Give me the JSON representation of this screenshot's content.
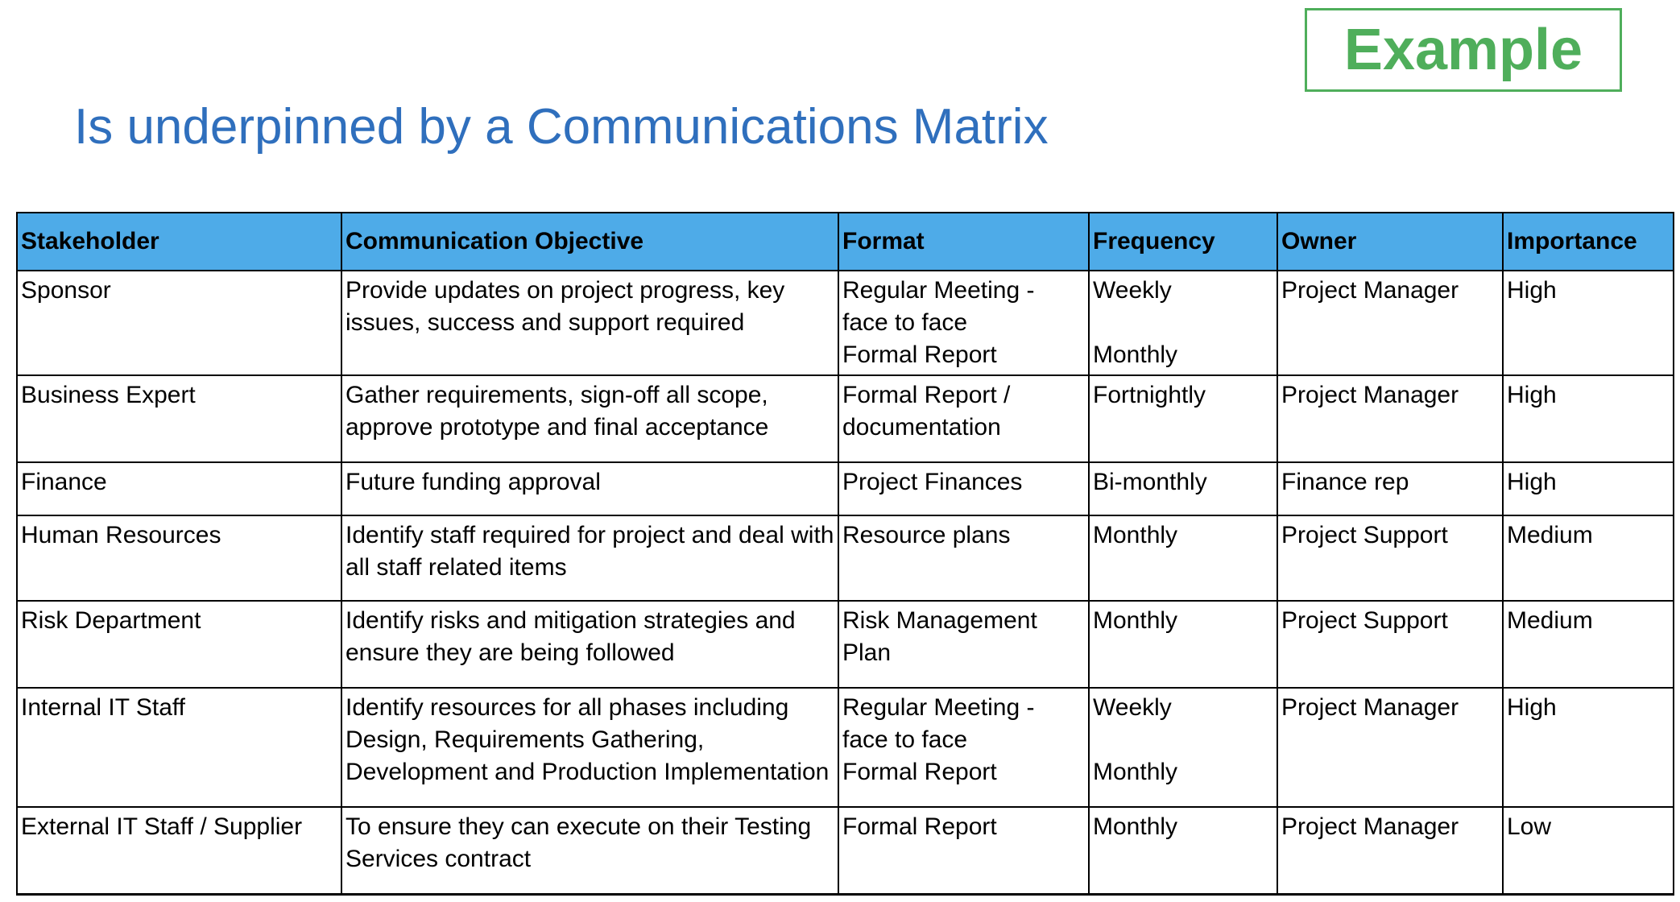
{
  "badge": {
    "label": "Example"
  },
  "title": "Is underpinned by a Communications Matrix",
  "colors": {
    "title": "#2f6fbd",
    "badge": "#4fae5b",
    "header_fill": "#4eabe8"
  },
  "table": {
    "headers": [
      "Stakeholder",
      "Communication Objective",
      "Format",
      "Frequency",
      "Owner",
      "Importance"
    ],
    "rows": [
      {
        "stakeholder": "Sponsor",
        "objective": "Provide updates on project progress, key issues, success and support required",
        "format": "Regular Meeting - face to face\nFormal Report",
        "frequency": "Weekly\n\nMonthly",
        "owner": "Project Manager",
        "importance": "High"
      },
      {
        "stakeholder": "Business Expert",
        "objective": "Gather requirements, sign-off all scope, approve prototype and final acceptance",
        "format": "Formal Report / documentation",
        "frequency": "Fortnightly",
        "owner": "Project Manager",
        "importance": "High"
      },
      {
        "stakeholder": "Finance",
        "objective": "Future funding approval",
        "format": "Project Finances",
        "frequency": "Bi-monthly",
        "owner": "Finance rep",
        "importance": "High"
      },
      {
        "stakeholder": "Human Resources",
        "objective": "Identify staff required for project and deal with all staff related items",
        "format": "Resource plans",
        "frequency": "Monthly",
        "owner": "Project Support",
        "importance": "Medium"
      },
      {
        "stakeholder": "Risk Department",
        "objective": "Identify risks and mitigation strategies and ensure they are being followed",
        "format": "Risk Management Plan",
        "frequency": "Monthly",
        "owner": "Project Support",
        "importance": "Medium"
      },
      {
        "stakeholder": "Internal IT Staff",
        "objective": "Identify resources for all phases including Design, Requirements Gathering, Development and Production Implementation",
        "format": "Regular Meeting - face to face\nFormal Report",
        "frequency": "Weekly\n\nMonthly",
        "owner": "Project Manager",
        "importance": "High"
      },
      {
        "stakeholder": "External IT Staff / Supplier",
        "objective": "To ensure they can execute on their Testing Services contract",
        "format": "Formal Report",
        "frequency": "Monthly",
        "owner": "Project Manager",
        "importance": "Low"
      }
    ]
  }
}
